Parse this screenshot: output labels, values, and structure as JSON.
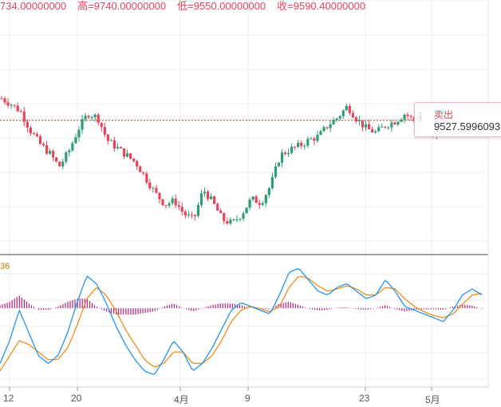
{
  "ohlc_bar": {
    "open": "734.00000000",
    "high_label": "高",
    "high": "9740.00000000",
    "low_label": "低",
    "low": "9550.00000000",
    "close_label": "收",
    "close": "9590.40000000"
  },
  "indicator_label": "36",
  "tooltip": {
    "title": "卖出",
    "value": "9527.5996093"
  },
  "colors": {
    "up": "#2e9e72",
    "down": "#e8435b",
    "dif": "#2196f3",
    "dea": "#f08c1e",
    "hist": "#b0207a"
  },
  "chart_data": [
    {
      "type": "candlestick",
      "title": "",
      "x_ticks": [
        "12",
        "20",
        "4月",
        "9",
        "23",
        "5月"
      ],
      "ylim": [
        9040,
        10380
      ],
      "reference_line": 9745,
      "close_trend": [
        9860,
        9830,
        9790,
        9690,
        9620,
        9570,
        9500,
        9580,
        9700,
        9780,
        9760,
        9640,
        9600,
        9560,
        9520,
        9440,
        9360,
        9300,
        9320,
        9250,
        9220,
        9380,
        9310,
        9220,
        9200,
        9250,
        9330,
        9310,
        9400,
        9560,
        9590,
        9610,
        9640,
        9660,
        9720,
        9760,
        9820,
        9750,
        9700,
        9680,
        9720,
        9740,
        9780,
        9740,
        9700,
        9650,
        9700,
        9750,
        9760,
        9800,
        9820
      ]
    },
    {
      "type": "line",
      "title": "",
      "series": [
        {
          "values": [
            -0.6,
            -0.3,
            0.1,
            -0.2,
            -0.5,
            -0.6,
            -0.5,
            -0.2,
            0.2,
            0.55,
            0.45,
            0.2,
            -0.1,
            -0.35,
            -0.55,
            -0.7,
            -0.75,
            -0.55,
            -0.3,
            -0.45,
            -0.7,
            -0.6,
            -0.4,
            -0.15,
            0.1,
            0.2,
            0.15,
            0.1,
            0.05,
            0.3,
            0.6,
            0.65,
            0.5,
            0.35,
            0.3,
            0.4,
            0.45,
            0.35,
            0.25,
            0.3,
            0.5,
            0.35,
            0.15,
            0.1,
            0.05,
            0.0,
            -0.05,
            0.1,
            0.3,
            0.38,
            0.3
          ]
        },
        {
          "values": [
            -0.7,
            -0.5,
            -0.3,
            -0.35,
            -0.45,
            -0.55,
            -0.55,
            -0.4,
            -0.1,
            0.25,
            0.4,
            0.3,
            0.1,
            -0.15,
            -0.35,
            -0.55,
            -0.65,
            -0.6,
            -0.45,
            -0.45,
            -0.6,
            -0.6,
            -0.5,
            -0.3,
            -0.05,
            0.1,
            0.15,
            0.12,
            0.08,
            0.15,
            0.4,
            0.55,
            0.52,
            0.42,
            0.35,
            0.38,
            0.42,
            0.38,
            0.3,
            0.3,
            0.4,
            0.38,
            0.25,
            0.15,
            0.08,
            0.03,
            0.0,
            0.05,
            0.18,
            0.3,
            0.32
          ]
        }
      ]
    }
  ]
}
